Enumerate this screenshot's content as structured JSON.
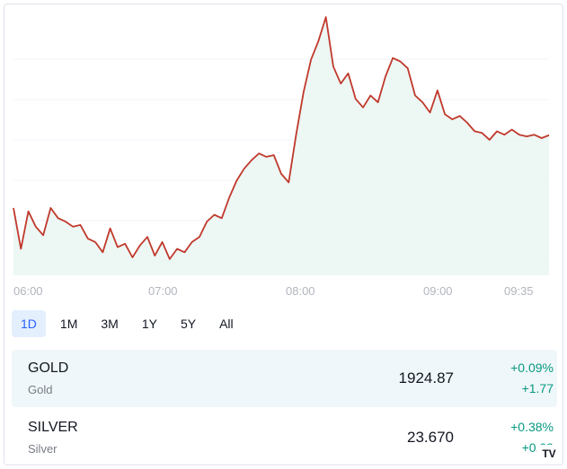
{
  "chart_data": {
    "type": "area",
    "x_ticks": [
      "06:00",
      "07:00",
      "08:00",
      "09:00",
      "09:35"
    ],
    "line_color": "#c0392b",
    "fill_color": "#e8f5f1",
    "x": [
      "06:00",
      "06:03",
      "06:06",
      "06:09",
      "06:12",
      "06:15",
      "06:18",
      "06:21",
      "06:24",
      "06:27",
      "06:30",
      "06:33",
      "06:36",
      "06:39",
      "06:42",
      "06:45",
      "06:48",
      "06:51",
      "06:54",
      "06:57",
      "07:00",
      "07:03",
      "07:06",
      "07:09",
      "07:12",
      "07:15",
      "07:18",
      "07:21",
      "07:24",
      "07:27",
      "07:30",
      "07:33",
      "07:36",
      "07:39",
      "07:42",
      "07:45",
      "07:48",
      "07:51",
      "07:54",
      "07:57",
      "08:00",
      "08:03",
      "08:06",
      "08:09",
      "08:12",
      "08:15",
      "08:18",
      "08:21",
      "08:24",
      "08:27",
      "08:30",
      "08:33",
      "08:36",
      "08:39",
      "08:42",
      "08:45",
      "08:48",
      "08:51",
      "08:54",
      "08:57",
      "09:00",
      "09:03",
      "09:06",
      "09:09",
      "09:12",
      "09:15",
      "09:18",
      "09:21",
      "09:24",
      "09:27",
      "09:30",
      "09:33",
      "09:35"
    ],
    "values": [
      1920.6,
      1918.2,
      1920.4,
      1919.5,
      1919.0,
      1920.6,
      1920.0,
      1919.8,
      1919.5,
      1919.6,
      1918.8,
      1918.6,
      1918.0,
      1919.4,
      1918.3,
      1918.5,
      1917.7,
      1918.4,
      1918.9,
      1917.8,
      1918.6,
      1917.6,
      1918.2,
      1918.0,
      1918.6,
      1918.9,
      1919.8,
      1920.2,
      1920.0,
      1921.2,
      1922.2,
      1922.9,
      1923.4,
      1923.8,
      1923.6,
      1923.7,
      1922.6,
      1922.1,
      1924.9,
      1927.4,
      1929.3,
      1930.4,
      1931.8,
      1928.9,
      1927.9,
      1928.5,
      1927.0,
      1926.5,
      1927.2,
      1926.8,
      1928.3,
      1929.4,
      1929.2,
      1928.8,
      1927.2,
      1926.8,
      1926.2,
      1927.5,
      1926.1,
      1925.8,
      1926.0,
      1925.6,
      1925.1,
      1925.0,
      1924.6,
      1925.1,
      1924.9,
      1925.2,
      1924.9,
      1924.8,
      1924.9,
      1924.7,
      1924.87
    ],
    "series_shape": [
      200,
      205,
      270,
      208,
      212,
      220,
      230,
      255,
      245,
      225,
      215,
      200,
      215,
      225,
      230,
      222,
      210,
      230,
      240,
      230,
      235,
      232,
      240,
      245,
      250,
      260,
      240,
      215,
      245,
      240,
      255,
      265,
      280,
      270,
      290,
      265,
      245,
      250,
      230,
      240,
      260,
      285,
      240,
      255,
      245,
      270,
      268,
      255,
      240,
      230,
      215,
      205,
      235,
      220,
      190,
      210,
      185,
      175,
      160,
      170,
      165,
      185,
      175,
      200,
      210,
      190,
      105,
      90,
      60,
      40,
      15,
      30,
      75,
      95,
      100,
      130,
      110,
      120,
      95,
      85,
      120,
      100,
      65,
      55,
      80,
      85,
      110,
      95,
      130,
      120,
      140,
      105,
      110
    ]
  },
  "ranges": [
    "1D",
    "1M",
    "3M",
    "1Y",
    "5Y",
    "All"
  ],
  "active_range": "1D",
  "symbols": [
    {
      "symbol": "GOLD",
      "description": "Gold",
      "price": "1924.87",
      "change_pct": "+0.09%",
      "change_abs": "+1.77"
    },
    {
      "symbol": "SILVER",
      "description": "Silver",
      "price": "23.670",
      "change_pct": "+0.38%",
      "change_abs": "+0.09"
    }
  ],
  "logo_text": "TV"
}
